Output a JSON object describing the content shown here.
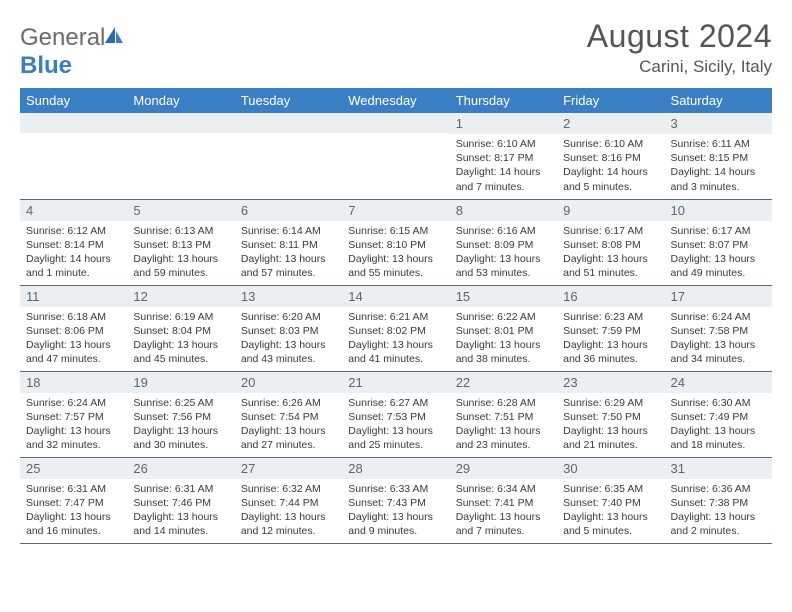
{
  "logo": {
    "text_general": "General",
    "text_blue": "Blue"
  },
  "title": "August 2024",
  "location": "Carini, Sicily, Italy",
  "header_bg": "#3a7fc4",
  "daynum_bg": "#eceff1",
  "weekdays": [
    "Sunday",
    "Monday",
    "Tuesday",
    "Wednesday",
    "Thursday",
    "Friday",
    "Saturday"
  ],
  "weeks": [
    [
      {
        "n": "",
        "sunrise": "",
        "sunset": "",
        "daylight": ""
      },
      {
        "n": "",
        "sunrise": "",
        "sunset": "",
        "daylight": ""
      },
      {
        "n": "",
        "sunrise": "",
        "sunset": "",
        "daylight": ""
      },
      {
        "n": "",
        "sunrise": "",
        "sunset": "",
        "daylight": ""
      },
      {
        "n": "1",
        "sunrise": "Sunrise: 6:10 AM",
        "sunset": "Sunset: 8:17 PM",
        "daylight": "Daylight: 14 hours and 7 minutes."
      },
      {
        "n": "2",
        "sunrise": "Sunrise: 6:10 AM",
        "sunset": "Sunset: 8:16 PM",
        "daylight": "Daylight: 14 hours and 5 minutes."
      },
      {
        "n": "3",
        "sunrise": "Sunrise: 6:11 AM",
        "sunset": "Sunset: 8:15 PM",
        "daylight": "Daylight: 14 hours and 3 minutes."
      }
    ],
    [
      {
        "n": "4",
        "sunrise": "Sunrise: 6:12 AM",
        "sunset": "Sunset: 8:14 PM",
        "daylight": "Daylight: 14 hours and 1 minute."
      },
      {
        "n": "5",
        "sunrise": "Sunrise: 6:13 AM",
        "sunset": "Sunset: 8:13 PM",
        "daylight": "Daylight: 13 hours and 59 minutes."
      },
      {
        "n": "6",
        "sunrise": "Sunrise: 6:14 AM",
        "sunset": "Sunset: 8:11 PM",
        "daylight": "Daylight: 13 hours and 57 minutes."
      },
      {
        "n": "7",
        "sunrise": "Sunrise: 6:15 AM",
        "sunset": "Sunset: 8:10 PM",
        "daylight": "Daylight: 13 hours and 55 minutes."
      },
      {
        "n": "8",
        "sunrise": "Sunrise: 6:16 AM",
        "sunset": "Sunset: 8:09 PM",
        "daylight": "Daylight: 13 hours and 53 minutes."
      },
      {
        "n": "9",
        "sunrise": "Sunrise: 6:17 AM",
        "sunset": "Sunset: 8:08 PM",
        "daylight": "Daylight: 13 hours and 51 minutes."
      },
      {
        "n": "10",
        "sunrise": "Sunrise: 6:17 AM",
        "sunset": "Sunset: 8:07 PM",
        "daylight": "Daylight: 13 hours and 49 minutes."
      }
    ],
    [
      {
        "n": "11",
        "sunrise": "Sunrise: 6:18 AM",
        "sunset": "Sunset: 8:06 PM",
        "daylight": "Daylight: 13 hours and 47 minutes."
      },
      {
        "n": "12",
        "sunrise": "Sunrise: 6:19 AM",
        "sunset": "Sunset: 8:04 PM",
        "daylight": "Daylight: 13 hours and 45 minutes."
      },
      {
        "n": "13",
        "sunrise": "Sunrise: 6:20 AM",
        "sunset": "Sunset: 8:03 PM",
        "daylight": "Daylight: 13 hours and 43 minutes."
      },
      {
        "n": "14",
        "sunrise": "Sunrise: 6:21 AM",
        "sunset": "Sunset: 8:02 PM",
        "daylight": "Daylight: 13 hours and 41 minutes."
      },
      {
        "n": "15",
        "sunrise": "Sunrise: 6:22 AM",
        "sunset": "Sunset: 8:01 PM",
        "daylight": "Daylight: 13 hours and 38 minutes."
      },
      {
        "n": "16",
        "sunrise": "Sunrise: 6:23 AM",
        "sunset": "Sunset: 7:59 PM",
        "daylight": "Daylight: 13 hours and 36 minutes."
      },
      {
        "n": "17",
        "sunrise": "Sunrise: 6:24 AM",
        "sunset": "Sunset: 7:58 PM",
        "daylight": "Daylight: 13 hours and 34 minutes."
      }
    ],
    [
      {
        "n": "18",
        "sunrise": "Sunrise: 6:24 AM",
        "sunset": "Sunset: 7:57 PM",
        "daylight": "Daylight: 13 hours and 32 minutes."
      },
      {
        "n": "19",
        "sunrise": "Sunrise: 6:25 AM",
        "sunset": "Sunset: 7:56 PM",
        "daylight": "Daylight: 13 hours and 30 minutes."
      },
      {
        "n": "20",
        "sunrise": "Sunrise: 6:26 AM",
        "sunset": "Sunset: 7:54 PM",
        "daylight": "Daylight: 13 hours and 27 minutes."
      },
      {
        "n": "21",
        "sunrise": "Sunrise: 6:27 AM",
        "sunset": "Sunset: 7:53 PM",
        "daylight": "Daylight: 13 hours and 25 minutes."
      },
      {
        "n": "22",
        "sunrise": "Sunrise: 6:28 AM",
        "sunset": "Sunset: 7:51 PM",
        "daylight": "Daylight: 13 hours and 23 minutes."
      },
      {
        "n": "23",
        "sunrise": "Sunrise: 6:29 AM",
        "sunset": "Sunset: 7:50 PM",
        "daylight": "Daylight: 13 hours and 21 minutes."
      },
      {
        "n": "24",
        "sunrise": "Sunrise: 6:30 AM",
        "sunset": "Sunset: 7:49 PM",
        "daylight": "Daylight: 13 hours and 18 minutes."
      }
    ],
    [
      {
        "n": "25",
        "sunrise": "Sunrise: 6:31 AM",
        "sunset": "Sunset: 7:47 PM",
        "daylight": "Daylight: 13 hours and 16 minutes."
      },
      {
        "n": "26",
        "sunrise": "Sunrise: 6:31 AM",
        "sunset": "Sunset: 7:46 PM",
        "daylight": "Daylight: 13 hours and 14 minutes."
      },
      {
        "n": "27",
        "sunrise": "Sunrise: 6:32 AM",
        "sunset": "Sunset: 7:44 PM",
        "daylight": "Daylight: 13 hours and 12 minutes."
      },
      {
        "n": "28",
        "sunrise": "Sunrise: 6:33 AM",
        "sunset": "Sunset: 7:43 PM",
        "daylight": "Daylight: 13 hours and 9 minutes."
      },
      {
        "n": "29",
        "sunrise": "Sunrise: 6:34 AM",
        "sunset": "Sunset: 7:41 PM",
        "daylight": "Daylight: 13 hours and 7 minutes."
      },
      {
        "n": "30",
        "sunrise": "Sunrise: 6:35 AM",
        "sunset": "Sunset: 7:40 PM",
        "daylight": "Daylight: 13 hours and 5 minutes."
      },
      {
        "n": "31",
        "sunrise": "Sunrise: 6:36 AM",
        "sunset": "Sunset: 7:38 PM",
        "daylight": "Daylight: 13 hours and 2 minutes."
      }
    ]
  ]
}
